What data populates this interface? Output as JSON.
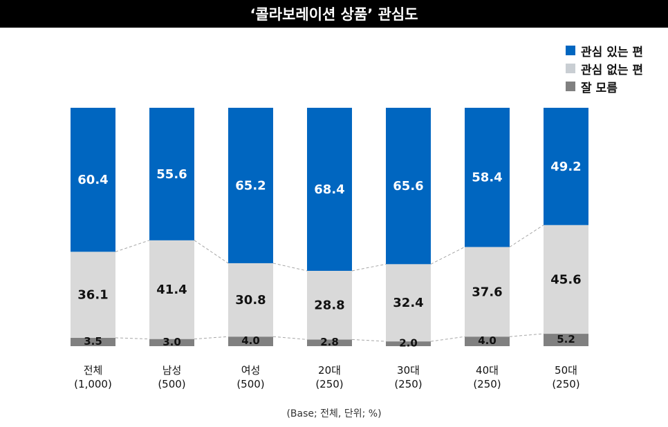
{
  "chart_data": {
    "type": "bar",
    "stacked": true,
    "title": "‘콜라보레이션 상품’ 관심도",
    "categories": [
      "전체",
      "남성",
      "여성",
      "20대",
      "30대",
      "40대",
      "50대"
    ],
    "bases": [
      "(1,000)",
      "(500)",
      "(500)",
      "(250)",
      "(250)",
      "(250)",
      "(250)"
    ],
    "series": [
      {
        "name": "잘 모름",
        "color": "#808080",
        "values": [
          3.5,
          3.0,
          4.0,
          2.8,
          2.0,
          4.0,
          5.2
        ]
      },
      {
        "name": "관심 없는 편",
        "color": "#d9d9d9",
        "values": [
          36.1,
          41.4,
          30.8,
          28.8,
          32.4,
          37.6,
          45.6
        ]
      },
      {
        "name": "관심 있는 편",
        "color": "#0066c0",
        "values": [
          60.4,
          55.6,
          65.2,
          68.4,
          65.6,
          58.4,
          49.2
        ]
      }
    ],
    "legend_order": [
      "관심 있는 편",
      "관심 없는 편",
      "잘 모름"
    ],
    "legend_position": "top-right",
    "ylim": [
      0,
      100
    ],
    "note": "(Base; 전체, 단위; %)"
  }
}
